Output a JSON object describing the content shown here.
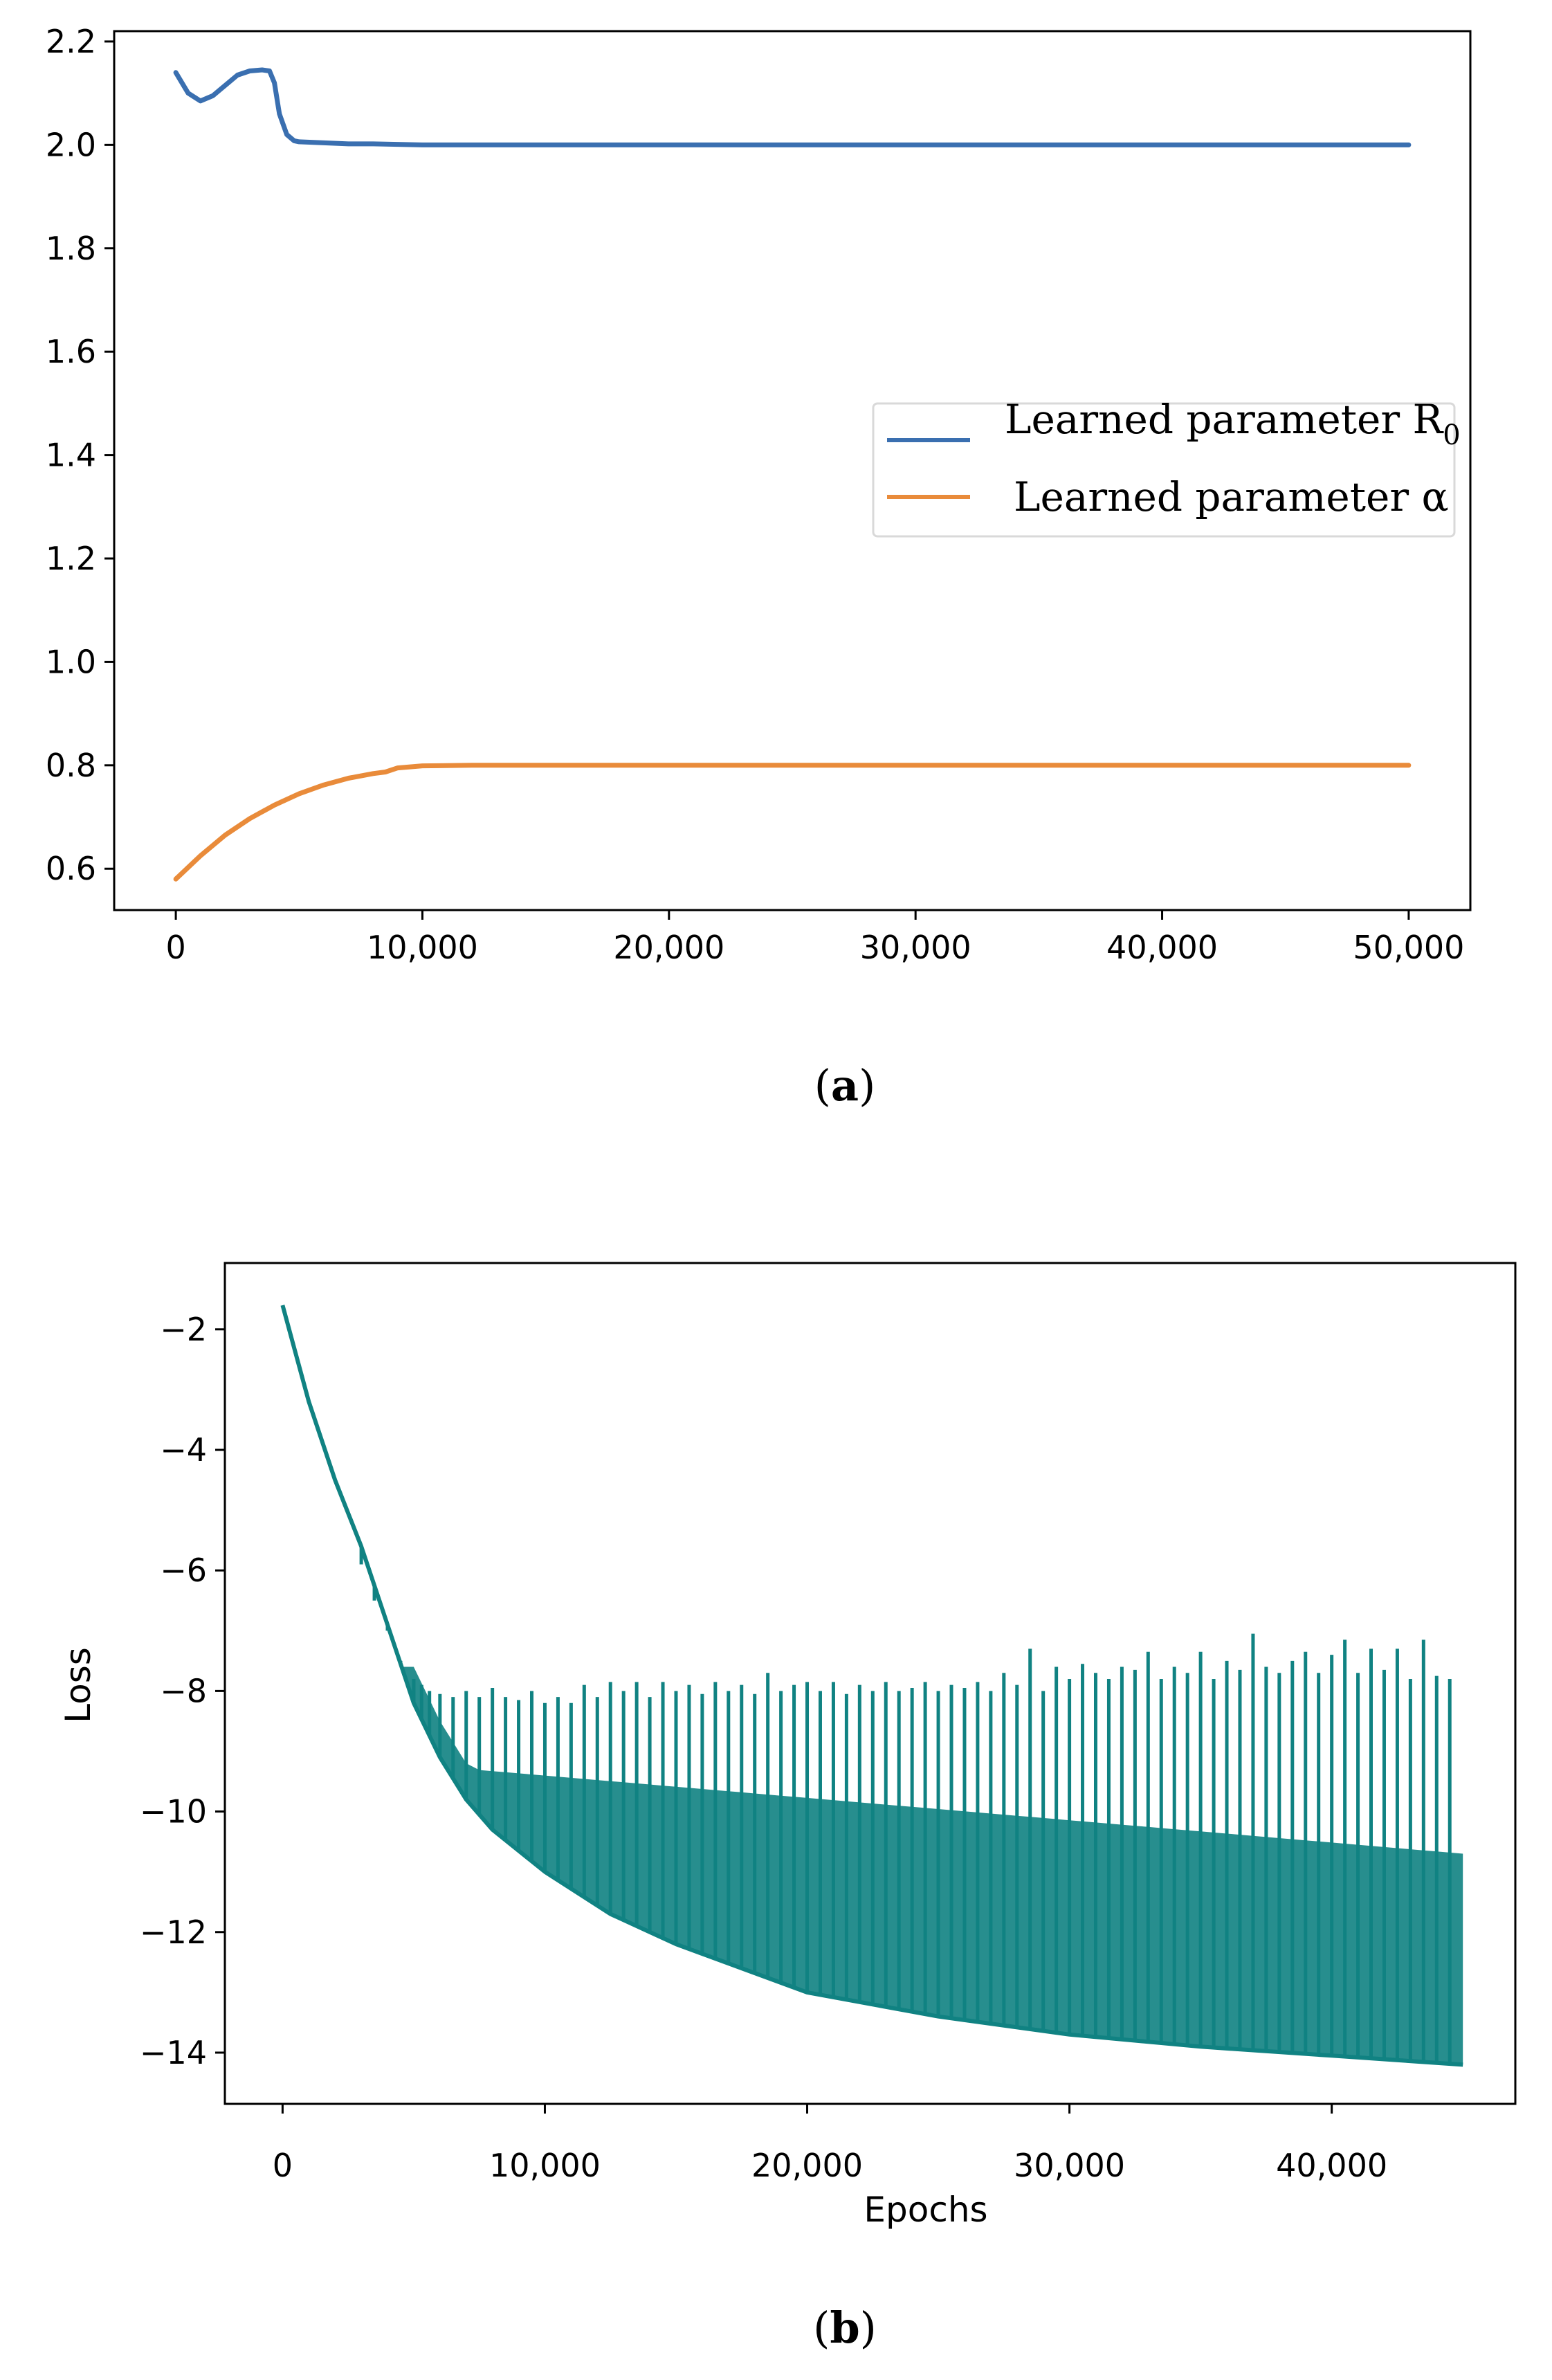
{
  "chart_data": [
    {
      "type": "line",
      "panel": "a",
      "caption": {
        "open": "(",
        "letter": "a",
        "close": ")"
      },
      "xlabel": "",
      "ylabel": "",
      "xlim": [
        -2500,
        52500
      ],
      "ylim": [
        0.52,
        2.22
      ],
      "xticks": [
        {
          "v": 0,
          "label": "0"
        },
        {
          "v": 10000,
          "label": "10,000"
        },
        {
          "v": 20000,
          "label": "20,000"
        },
        {
          "v": 30000,
          "label": "30,000"
        },
        {
          "v": 40000,
          "label": "40,000"
        },
        {
          "v": 50000,
          "label": "50,000"
        }
      ],
      "yticks": [
        {
          "v": 0.6,
          "label": "0.6"
        },
        {
          "v": 0.8,
          "label": "0.8"
        },
        {
          "v": 1.0,
          "label": "1.0"
        },
        {
          "v": 1.2,
          "label": "1.2"
        },
        {
          "v": 1.4,
          "label": "1.4"
        },
        {
          "v": 1.6,
          "label": "1.6"
        },
        {
          "v": 1.8,
          "label": "1.8"
        },
        {
          "v": 2.0,
          "label": "2.0"
        },
        {
          "v": 2.2,
          "label": "2.2"
        }
      ],
      "legend": {
        "placement": "center-right"
      },
      "series": [
        {
          "name": "Learned parameter R",
          "subscript": "0",
          "color": "#3a6fb0",
          "x": [
            0,
            500,
            1000,
            1500,
            2000,
            2500,
            3000,
            3500,
            3800,
            4000,
            4200,
            4500,
            4800,
            5000,
            6000,
            7000,
            8000,
            10000,
            11000,
            15000,
            20000,
            30000,
            40000,
            50000
          ],
          "y": [
            2.14,
            2.1,
            2.085,
            2.095,
            2.115,
            2.135,
            2.143,
            2.145,
            2.143,
            2.12,
            2.06,
            2.02,
            2.008,
            2.006,
            2.004,
            2.002,
            2.002,
            2.0,
            2.0,
            2.0,
            2.0,
            2.0,
            2.0,
            2.0
          ]
        },
        {
          "name": "Learned parameter α",
          "subscript": "",
          "color": "#e98b3a",
          "x": [
            0,
            1000,
            2000,
            3000,
            4000,
            5000,
            6000,
            7000,
            8000,
            8500,
            9000,
            10000,
            12000,
            15000,
            20000,
            30000,
            40000,
            50000
          ],
          "y": [
            0.58,
            0.625,
            0.665,
            0.697,
            0.723,
            0.745,
            0.762,
            0.775,
            0.784,
            0.787,
            0.795,
            0.799,
            0.8,
            0.8,
            0.8,
            0.8,
            0.8,
            0.8
          ]
        }
      ]
    },
    {
      "type": "line",
      "panel": "b",
      "caption": {
        "open": "(",
        "letter": "b",
        "close": ")"
      },
      "xlabel": "Epochs",
      "ylabel": "Loss",
      "xlim": [
        -2200,
        47000
      ],
      "ylim": [
        -14.85,
        -0.9
      ],
      "xticks": [
        {
          "v": 0,
          "label": "0"
        },
        {
          "v": 10000,
          "label": "10,000"
        },
        {
          "v": 20000,
          "label": "20,000"
        },
        {
          "v": 30000,
          "label": "30,000"
        },
        {
          "v": 40000,
          "label": "40,000"
        }
      ],
      "yticks": [
        {
          "v": -2,
          "label": "−2"
        },
        {
          "v": -4,
          "label": "−4"
        },
        {
          "v": -6,
          "label": "−6"
        },
        {
          "v": -8,
          "label": "−8"
        },
        {
          "v": -10,
          "label": "−10"
        },
        {
          "v": -12,
          "label": "−12"
        },
        {
          "v": -14,
          "label": "−14"
        }
      ],
      "series": [
        {
          "name": "Loss",
          "color": "#108282",
          "baseline": {
            "x": [
              0,
              500,
              1000,
              2000,
              3000,
              4000,
              5000,
              6000,
              7000,
              8000,
              10000,
              12500,
              15000,
              20000,
              25000,
              30000,
              35000,
              40000,
              45000
            ],
            "y": [
              -1.6,
              -2.4,
              -3.2,
              -4.5,
              -5.6,
              -6.9,
              -8.2,
              -9.1,
              -9.8,
              -10.3,
              -11.0,
              -11.7,
              -12.2,
              -13.0,
              -13.4,
              -13.7,
              -13.9,
              -14.05,
              -14.2
            ]
          },
          "spikes": [
            {
              "x": 3000,
              "y": -5.9
            },
            {
              "x": 3500,
              "y": -6.5
            },
            {
              "x": 4000,
              "y": -7.0
            },
            {
              "x": 4500,
              "y": -7.5
            },
            {
              "x": 5000,
              "y": -7.8
            },
            {
              "x": 5300,
              "y": -7.9
            },
            {
              "x": 5600,
              "y": -8.0
            },
            {
              "x": 6000,
              "y": -8.05
            },
            {
              "x": 6500,
              "y": -8.1
            },
            {
              "x": 7000,
              "y": -8.0
            },
            {
              "x": 7500,
              "y": -8.1
            },
            {
              "x": 8000,
              "y": -7.95
            },
            {
              "x": 8500,
              "y": -8.1
            },
            {
              "x": 9000,
              "y": -8.15
            },
            {
              "x": 9500,
              "y": -8.0
            },
            {
              "x": 10000,
              "y": -8.2
            },
            {
              "x": 10500,
              "y": -8.1
            },
            {
              "x": 11000,
              "y": -8.2
            },
            {
              "x": 11500,
              "y": -7.9
            },
            {
              "x": 12000,
              "y": -8.1
            },
            {
              "x": 12500,
              "y": -7.85
            },
            {
              "x": 13000,
              "y": -8.0
            },
            {
              "x": 13500,
              "y": -7.85
            },
            {
              "x": 14000,
              "y": -8.1
            },
            {
              "x": 14500,
              "y": -7.85
            },
            {
              "x": 15000,
              "y": -8.0
            },
            {
              "x": 15500,
              "y": -7.9
            },
            {
              "x": 16000,
              "y": -8.05
            },
            {
              "x": 16500,
              "y": -7.85
            },
            {
              "x": 17000,
              "y": -8.0
            },
            {
              "x": 17500,
              "y": -7.9
            },
            {
              "x": 18000,
              "y": -8.05
            },
            {
              "x": 18500,
              "y": -7.7
            },
            {
              "x": 19000,
              "y": -8.0
            },
            {
              "x": 19500,
              "y": -7.9
            },
            {
              "x": 20000,
              "y": -7.85
            },
            {
              "x": 20500,
              "y": -8.0
            },
            {
              "x": 21000,
              "y": -7.85
            },
            {
              "x": 21500,
              "y": -8.05
            },
            {
              "x": 22000,
              "y": -7.9
            },
            {
              "x": 22500,
              "y": -8.0
            },
            {
              "x": 23000,
              "y": -7.85
            },
            {
              "x": 23500,
              "y": -8.0
            },
            {
              "x": 24000,
              "y": -7.95
            },
            {
              "x": 24500,
              "y": -7.85
            },
            {
              "x": 25000,
              "y": -8.0
            },
            {
              "x": 25500,
              "y": -7.9
            },
            {
              "x": 26000,
              "y": -7.95
            },
            {
              "x": 26500,
              "y": -7.85
            },
            {
              "x": 27000,
              "y": -8.0
            },
            {
              "x": 27500,
              "y": -7.7
            },
            {
              "x": 28000,
              "y": -7.9
            },
            {
              "x": 28500,
              "y": -7.3
            },
            {
              "x": 29000,
              "y": -8.0
            },
            {
              "x": 29500,
              "y": -7.6
            },
            {
              "x": 30000,
              "y": -7.8
            },
            {
              "x": 30500,
              "y": -7.55
            },
            {
              "x": 31000,
              "y": -7.7
            },
            {
              "x": 31500,
              "y": -7.8
            },
            {
              "x": 32000,
              "y": -7.6
            },
            {
              "x": 32500,
              "y": -7.65
            },
            {
              "x": 33000,
              "y": -7.35
            },
            {
              "x": 33500,
              "y": -7.8
            },
            {
              "x": 34000,
              "y": -7.6
            },
            {
              "x": 34500,
              "y": -7.7
            },
            {
              "x": 35000,
              "y": -7.35
            },
            {
              "x": 35500,
              "y": -7.8
            },
            {
              "x": 36000,
              "y": -7.5
            },
            {
              "x": 36500,
              "y": -7.65
            },
            {
              "x": 37000,
              "y": -7.05
            },
            {
              "x": 37500,
              "y": -7.6
            },
            {
              "x": 38000,
              "y": -7.7
            },
            {
              "x": 38500,
              "y": -7.5
            },
            {
              "x": 39000,
              "y": -7.35
            },
            {
              "x": 39500,
              "y": -7.7
            },
            {
              "x": 40000,
              "y": -7.4
            },
            {
              "x": 40500,
              "y": -7.15
            },
            {
              "x": 41000,
              "y": -7.7
            },
            {
              "x": 41500,
              "y": -7.3
            },
            {
              "x": 42000,
              "y": -7.65
            },
            {
              "x": 42500,
              "y": -7.3
            },
            {
              "x": 43000,
              "y": -7.8
            },
            {
              "x": 43500,
              "y": -7.15
            },
            {
              "x": 44000,
              "y": -7.75
            },
            {
              "x": 44500,
              "y": -7.8
            }
          ]
        }
      ]
    }
  ]
}
